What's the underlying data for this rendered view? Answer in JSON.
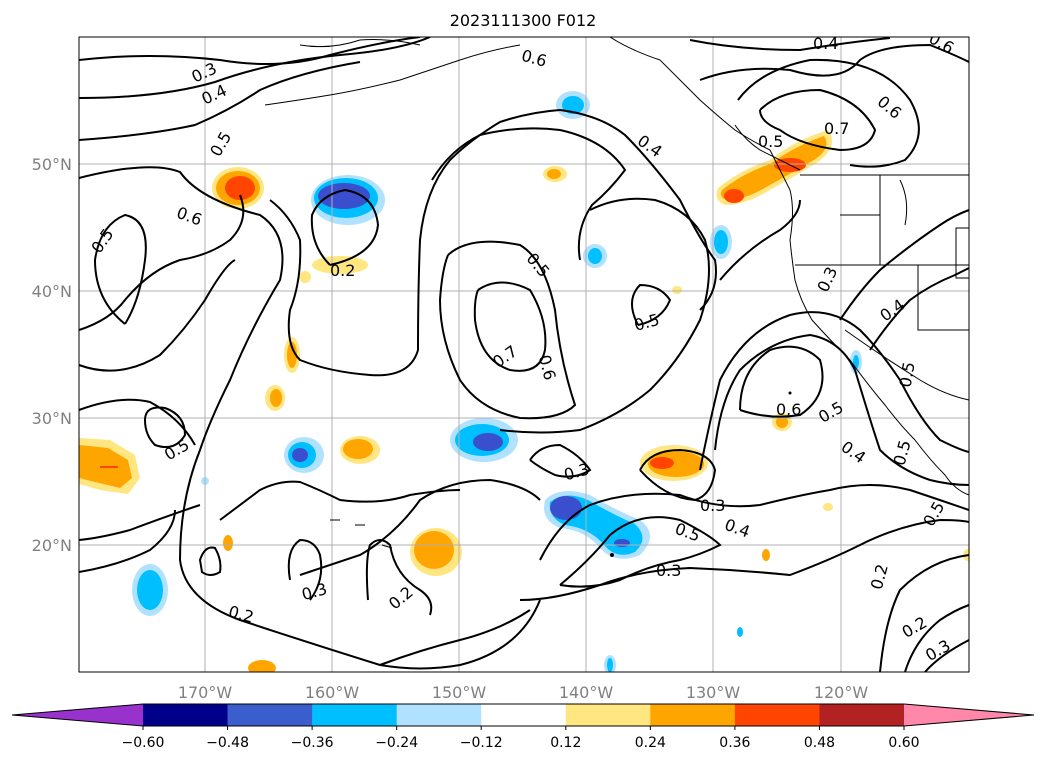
{
  "title": "2023111300 F012",
  "map": {
    "lon_labels": [
      "170°W",
      "160°W",
      "150°W",
      "140°W",
      "130°W",
      "120°W"
    ],
    "lat_labels": [
      "50°N",
      "40°N",
      "30°N",
      "20°N"
    ],
    "contour_labels": [
      "0.3",
      "0.4",
      "0.5",
      "0.6",
      "0.5",
      "0.6",
      "0.2",
      "0.5",
      "0.5",
      "0.6",
      "0.7",
      "0.6",
      "0.4",
      "0.5",
      "0.6",
      "0.7",
      "0.5",
      "0.3",
      "0.4",
      "0.5",
      "0.6",
      "0.5",
      "0.4",
      "0.5",
      "0.3",
      "0.3",
      "0.5",
      "0.4",
      "0.3",
      "0.3",
      "0.2",
      "0.2",
      "0.2",
      "0.3",
      "0.2",
      "0.4",
      "0.5"
    ]
  },
  "colorbar": {
    "tick_labels": [
      "−0.60",
      "−0.48",
      "−0.36",
      "−0.24",
      "−0.12",
      "0.12",
      "0.24",
      "0.36",
      "0.48",
      "0.60"
    ],
    "colors": [
      "#9932cc",
      "#00008b",
      "#3a5fcd",
      "#00bfff",
      "#b0e2ff",
      "#ffffff",
      "#ffe680",
      "#ffa500",
      "#ff4500",
      "#b22222",
      "#ff88aa"
    ]
  },
  "field_colors": {
    "deep_blue": "#3a4fcd",
    "blue": "#00bfff",
    "light_blue": "#b0e2ff",
    "yellow": "#ffe680",
    "orange": "#ffa500",
    "red": "#ff4500"
  }
}
